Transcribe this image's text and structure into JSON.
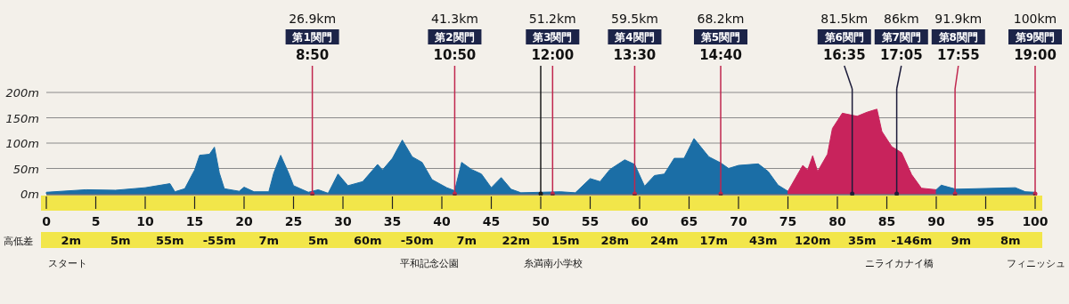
{
  "chart_data": [
    {
      "type": "area",
      "xlim": [
        0,
        100
      ],
      "xticks": [
        0,
        5,
        10,
        15,
        20,
        25,
        30,
        35,
        40,
        45,
        50,
        55,
        60,
        65,
        70,
        75,
        80,
        85,
        90,
        95,
        100
      ],
      "ylim": [
        0,
        200
      ],
      "yticks": [
        {
          "value": 0,
          "label": "0m"
        },
        {
          "value": 50,
          "label": "50m"
        },
        {
          "value": 100,
          "label": "100m"
        },
        {
          "value": 150,
          "label": "150m"
        },
        {
          "value": 200,
          "label": "200m"
        }
      ],
      "grid": "y",
      "series": [
        {
          "color": "#1b6ea6",
          "x": [
            0,
            4,
            7,
            10,
            12.5,
            13,
            14,
            15,
            15.5,
            16.5,
            17,
            17.5,
            18,
            19.5,
            20,
            21,
            22.5,
            23,
            23.7,
            24.5,
            25,
            26.5,
            27.5,
            28.5,
            29.5,
            30.5,
            32,
            33.5,
            34,
            35,
            36,
            37,
            38,
            39,
            40.5,
            41.3,
            42,
            43,
            44,
            45,
            46,
            47,
            48,
            52,
            53.5,
            55,
            56,
            57,
            58.5,
            59.5,
            60.5,
            61.5,
            62.5,
            63.5,
            64.5,
            65.5,
            67,
            68.2,
            69,
            70,
            72,
            73,
            74,
            75
          ],
          "values": [
            3,
            8,
            7,
            12,
            20,
            4,
            10,
            47,
            76,
            78,
            92,
            41,
            10,
            5,
            13,
            4,
            4,
            41,
            76,
            41,
            16,
            3,
            8,
            1,
            39,
            16,
            24,
            58,
            47,
            70,
            106,
            73,
            62,
            28,
            12,
            6,
            62,
            48,
            39,
            12,
            32,
            9,
            2,
            4,
            2,
            30,
            24,
            48,
            67,
            58,
            15,
            36,
            39,
            70,
            70,
            109,
            73,
            61,
            50,
            56,
            59,
            44,
            17,
            5
          ]
        },
        {
          "color": "#c8235c",
          "x": [
            75,
            76.5,
            77,
            77.5,
            78,
            79,
            79.5,
            80.5,
            82,
            83,
            84,
            84.5,
            85.5,
            86.5,
            87.5,
            88.5,
            90
          ],
          "values": [
            5,
            56,
            47,
            75,
            44,
            78,
            129,
            159,
            153,
            161,
            167,
            123,
            93,
            81,
            38,
            11,
            8
          ]
        },
        {
          "color": "#1b6ea6",
          "x": [
            90,
            90.5,
            92,
            98,
            99,
            100
          ],
          "values": [
            8,
            17,
            9,
            12,
            4,
            3
          ]
        }
      ],
      "ref_lines": [
        {
          "axis": "x",
          "value": 26.9,
          "label": "26.9km\n第1関門\n8:50",
          "color": "#c0264e"
        },
        {
          "axis": "x",
          "value": 41.3,
          "label": "41.3km\n第2関門\n10:50",
          "color": "#c0264e"
        },
        {
          "axis": "x",
          "value": 50,
          "color": "#1a1a1a"
        },
        {
          "axis": "x",
          "value": 51.2,
          "label": "51.2km\n第3関門\n12:00",
          "color": "#c0264e"
        },
        {
          "axis": "x",
          "value": 59.5,
          "label": "59.5km\n第4関門\n13:30",
          "color": "#c0264e"
        },
        {
          "axis": "x",
          "value": 68.2,
          "label": "68.2km\n第5関門\n14:40",
          "color": "#c0264e"
        },
        {
          "axis": "x",
          "value": 81.5,
          "label": "81.5km\n第6関門\n16:35",
          "color": "#1c1c3a"
        },
        {
          "axis": "x",
          "value": 86,
          "label": "86km\n第7関門\n17:05",
          "color": "#1c1c3a"
        },
        {
          "axis": "x",
          "value": 91.9,
          "label": "91.9km\n第8関門\n17:55",
          "color": "#c0264e"
        },
        {
          "axis": "x",
          "value": 100,
          "label": "100km\n第9関門\n19:00",
          "color": "#c0264e"
        }
      ]
    },
    {
      "type": "other",
      "ylabel": "高低差",
      "categories": [
        "2m",
        "5m",
        "55m",
        "-55m",
        "7m",
        "5m",
        "60m",
        "-50m",
        "7m",
        "22m",
        "15m",
        "28m",
        "24m",
        "17m",
        "43m",
        "120m",
        "35m",
        "-146m",
        "9m",
        "8m"
      ]
    },
    {
      "type": "other",
      "categories": [
        "スタート",
        null,
        null,
        null,
        null,
        null,
        null,
        null,
        null,
        null,
        null,
        null,
        null,
        null,
        null,
        "平和記念公園",
        null,
        null,
        null,
        null,
        "糸満南小学校",
        null,
        null,
        null,
        null,
        null,
        null,
        null,
        null,
        null,
        null,
        null,
        null,
        null,
        "ニライカナイ橋",
        null,
        null,
        null,
        null,
        "フィニッシュ"
      ]
    }
  ]
}
